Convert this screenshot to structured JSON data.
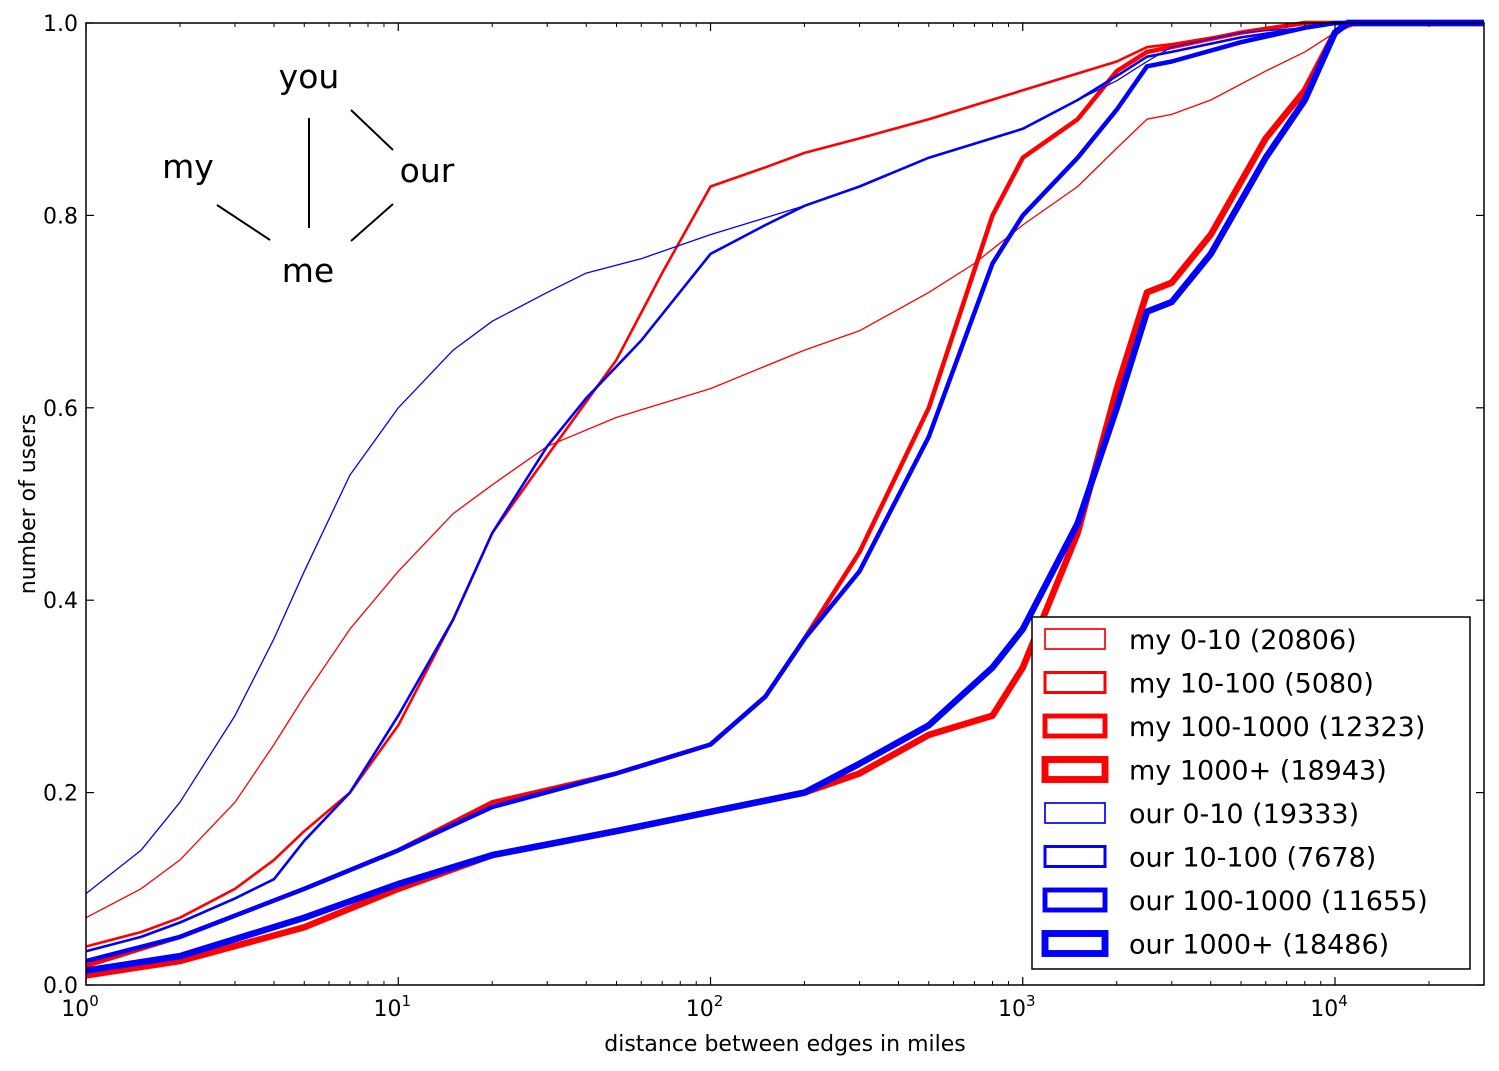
{
  "chart_data": {
    "type": "line",
    "title": "",
    "xlabel": "distance between edges in miles",
    "ylabel": "number of users",
    "xscale": "log",
    "xlim": [
      1,
      30000
    ],
    "ylim": [
      0.0,
      1.0
    ],
    "grid": false,
    "legend_position": "bottom-right",
    "x_ticks": [
      {
        "value": 1,
        "base": "10",
        "exp": "0"
      },
      {
        "value": 10,
        "base": "10",
        "exp": "1"
      },
      {
        "value": 100,
        "base": "10",
        "exp": "2"
      },
      {
        "value": 1000,
        "base": "10",
        "exp": "3"
      },
      {
        "value": 10000,
        "base": "10",
        "exp": "4"
      }
    ],
    "y_ticks": [
      {
        "value": 0.0,
        "label": "0.0"
      },
      {
        "value": 0.2,
        "label": "0.2"
      },
      {
        "value": 0.4,
        "label": "0.4"
      },
      {
        "value": 0.6,
        "label": "0.6"
      },
      {
        "value": 0.8,
        "label": "0.8"
      },
      {
        "value": 1.0,
        "label": "1.0"
      }
    ],
    "annotation": {
      "words": {
        "you": "you",
        "my": "my",
        "our": "our",
        "me": "me"
      }
    },
    "series": [
      {
        "name": "my 0-10 (20806)",
        "color": "#ff0000",
        "weight": 1,
        "points": [
          [
            1,
            0.07
          ],
          [
            1.5,
            0.1
          ],
          [
            2,
            0.13
          ],
          [
            3,
            0.19
          ],
          [
            4,
            0.25
          ],
          [
            5,
            0.3
          ],
          [
            7,
            0.37
          ],
          [
            10,
            0.43
          ],
          [
            15,
            0.49
          ],
          [
            20,
            0.52
          ],
          [
            30,
            0.56
          ],
          [
            50,
            0.59
          ],
          [
            100,
            0.62
          ],
          [
            200,
            0.66
          ],
          [
            300,
            0.68
          ],
          [
            500,
            0.72
          ],
          [
            700,
            0.75
          ],
          [
            1000,
            0.79
          ],
          [
            1500,
            0.83
          ],
          [
            2000,
            0.87
          ],
          [
            2500,
            0.9
          ],
          [
            3000,
            0.905
          ],
          [
            4000,
            0.92
          ],
          [
            6000,
            0.95
          ],
          [
            8000,
            0.97
          ],
          [
            10000,
            0.99
          ],
          [
            12000,
            1.0
          ],
          [
            30000,
            1.0
          ]
        ]
      },
      {
        "name": "my 10-100 (5080)",
        "color": "#ff0000",
        "weight": 2,
        "points": [
          [
            1,
            0.04
          ],
          [
            1.5,
            0.055
          ],
          [
            2,
            0.07
          ],
          [
            3,
            0.1
          ],
          [
            4,
            0.13
          ],
          [
            5,
            0.16
          ],
          [
            7,
            0.2
          ],
          [
            10,
            0.27
          ],
          [
            15,
            0.38
          ],
          [
            20,
            0.47
          ],
          [
            30,
            0.55
          ],
          [
            50,
            0.65
          ],
          [
            70,
            0.74
          ],
          [
            100,
            0.83
          ],
          [
            150,
            0.85
          ],
          [
            200,
            0.865
          ],
          [
            300,
            0.88
          ],
          [
            500,
            0.9
          ],
          [
            1000,
            0.93
          ],
          [
            2000,
            0.96
          ],
          [
            2500,
            0.975
          ],
          [
            3000,
            0.978
          ],
          [
            5000,
            0.99
          ],
          [
            8000,
            1.0
          ],
          [
            30000,
            1.0
          ]
        ]
      },
      {
        "name": "my 100-1000 (12323)",
        "color": "#ff0000",
        "weight": 3,
        "points": [
          [
            1,
            0.02
          ],
          [
            2,
            0.05
          ],
          [
            5,
            0.1
          ],
          [
            10,
            0.14
          ],
          [
            20,
            0.19
          ],
          [
            50,
            0.22
          ],
          [
            100,
            0.25
          ],
          [
            150,
            0.3
          ],
          [
            200,
            0.36
          ],
          [
            300,
            0.45
          ],
          [
            500,
            0.6
          ],
          [
            800,
            0.8
          ],
          [
            1000,
            0.86
          ],
          [
            1500,
            0.9
          ],
          [
            2000,
            0.95
          ],
          [
            2500,
            0.97
          ],
          [
            3000,
            0.975
          ],
          [
            5000,
            0.99
          ],
          [
            8000,
            1.0
          ],
          [
            30000,
            1.0
          ]
        ]
      },
      {
        "name": "my 1000+ (18943)",
        "color": "#ff0000",
        "weight": 4,
        "points": [
          [
            1,
            0.01
          ],
          [
            2,
            0.025
          ],
          [
            5,
            0.06
          ],
          [
            10,
            0.1
          ],
          [
            20,
            0.135
          ],
          [
            50,
            0.16
          ],
          [
            100,
            0.18
          ],
          [
            200,
            0.2
          ],
          [
            300,
            0.22
          ],
          [
            500,
            0.26
          ],
          [
            800,
            0.28
          ],
          [
            1000,
            0.33
          ],
          [
            1500,
            0.47
          ],
          [
            2000,
            0.62
          ],
          [
            2500,
            0.72
          ],
          [
            3000,
            0.73
          ],
          [
            4000,
            0.78
          ],
          [
            6000,
            0.88
          ],
          [
            8000,
            0.93
          ],
          [
            10000,
            0.99
          ],
          [
            11000,
            1.0
          ],
          [
            30000,
            1.0
          ]
        ]
      },
      {
        "name": "our 0-10 (19333)",
        "color": "#0000ff",
        "weight": 1,
        "points": [
          [
            1,
            0.095
          ],
          [
            1.5,
            0.14
          ],
          [
            2,
            0.19
          ],
          [
            3,
            0.28
          ],
          [
            4,
            0.36
          ],
          [
            5,
            0.43
          ],
          [
            7,
            0.53
          ],
          [
            10,
            0.6
          ],
          [
            15,
            0.66
          ],
          [
            20,
            0.69
          ],
          [
            30,
            0.72
          ],
          [
            40,
            0.74
          ],
          [
            60,
            0.755
          ],
          [
            100,
            0.78
          ],
          [
            200,
            0.81
          ],
          [
            300,
            0.83
          ],
          [
            500,
            0.86
          ],
          [
            1000,
            0.89
          ],
          [
            1500,
            0.92
          ],
          [
            2000,
            0.94
          ],
          [
            2500,
            0.96
          ],
          [
            3000,
            0.975
          ],
          [
            5000,
            0.99
          ],
          [
            8000,
            0.995
          ],
          [
            10000,
            1.0
          ],
          [
            30000,
            1.0
          ]
        ]
      },
      {
        "name": "our 10-100 (7678)",
        "color": "#0000ff",
        "weight": 2,
        "points": [
          [
            1,
            0.035
          ],
          [
            1.5,
            0.05
          ],
          [
            2,
            0.065
          ],
          [
            3,
            0.09
          ],
          [
            4,
            0.11
          ],
          [
            5,
            0.15
          ],
          [
            7,
            0.2
          ],
          [
            10,
            0.28
          ],
          [
            15,
            0.38
          ],
          [
            20,
            0.47
          ],
          [
            30,
            0.56
          ],
          [
            40,
            0.61
          ],
          [
            60,
            0.67
          ],
          [
            100,
            0.76
          ],
          [
            150,
            0.79
          ],
          [
            200,
            0.81
          ],
          [
            300,
            0.83
          ],
          [
            500,
            0.86
          ],
          [
            1000,
            0.89
          ],
          [
            1500,
            0.92
          ],
          [
            2000,
            0.945
          ],
          [
            2500,
            0.965
          ],
          [
            3000,
            0.97
          ],
          [
            5000,
            0.985
          ],
          [
            8000,
            0.995
          ],
          [
            10000,
            1.0
          ],
          [
            30000,
            1.0
          ]
        ]
      },
      {
        "name": "our 100-1000 (11655)",
        "color": "#0000ff",
        "weight": 3,
        "points": [
          [
            1,
            0.025
          ],
          [
            2,
            0.05
          ],
          [
            5,
            0.1
          ],
          [
            10,
            0.14
          ],
          [
            20,
            0.185
          ],
          [
            50,
            0.22
          ],
          [
            100,
            0.25
          ],
          [
            150,
            0.3
          ],
          [
            200,
            0.36
          ],
          [
            300,
            0.43
          ],
          [
            500,
            0.57
          ],
          [
            800,
            0.75
          ],
          [
            1000,
            0.8
          ],
          [
            1500,
            0.86
          ],
          [
            2000,
            0.91
          ],
          [
            2500,
            0.955
          ],
          [
            3000,
            0.96
          ],
          [
            5000,
            0.98
          ],
          [
            8000,
            0.995
          ],
          [
            10000,
            1.0
          ],
          [
            30000,
            1.0
          ]
        ]
      },
      {
        "name": "our 1000+ (18486)",
        "color": "#0000ff",
        "weight": 4,
        "points": [
          [
            1,
            0.015
          ],
          [
            2,
            0.03
          ],
          [
            5,
            0.07
          ],
          [
            10,
            0.105
          ],
          [
            20,
            0.135
          ],
          [
            50,
            0.16
          ],
          [
            100,
            0.18
          ],
          [
            200,
            0.2
          ],
          [
            300,
            0.23
          ],
          [
            500,
            0.27
          ],
          [
            800,
            0.33
          ],
          [
            1000,
            0.37
          ],
          [
            1500,
            0.48
          ],
          [
            2000,
            0.6
          ],
          [
            2500,
            0.7
          ],
          [
            3000,
            0.71
          ],
          [
            4000,
            0.76
          ],
          [
            6000,
            0.86
          ],
          [
            8000,
            0.92
          ],
          [
            10000,
            0.99
          ],
          [
            11000,
            1.0
          ],
          [
            30000,
            1.0
          ]
        ]
      }
    ]
  }
}
